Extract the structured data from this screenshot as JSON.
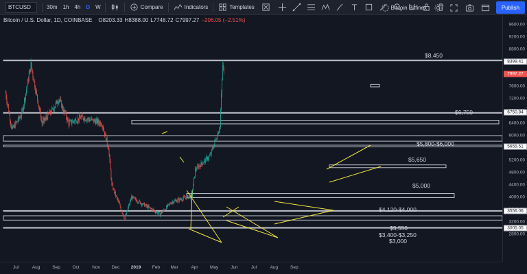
{
  "toolbar": {
    "symbol": "BTCUSD",
    "intervals": [
      "30m",
      "1h",
      "4h",
      "D",
      "W"
    ],
    "active_interval": "D",
    "compare_label": "Compare",
    "indicators_label": "Indicators",
    "templates_label": "Templates",
    "data_source": "Bitcoin Bitfinex",
    "publish_label": "Publish"
  },
  "legend": {
    "title": "Bitcoin / U.S. Dollar",
    "interval": "1D",
    "exchange": "COINBASE",
    "open": "O8203.33",
    "high": "H8388.00",
    "low": "L7748.72",
    "close": "C7997.27",
    "change": "−206.05 (−2.51%)"
  },
  "price_axis": {
    "ticks": [
      "9600.00",
      "9200.00",
      "8800.00",
      "8400.00",
      "8000.00",
      "7600.00",
      "7200.00",
      "6800.00",
      "6400.00",
      "6000.00",
      "5600.00",
      "5200.00",
      "4800.00",
      "4400.00",
      "4000.00",
      "3600.00",
      "3200.00",
      "2800.00"
    ],
    "tags": [
      {
        "label": "8399.41",
        "style": "light"
      },
      {
        "label": "7997.27",
        "style": "red"
      },
      {
        "label": "6750.84",
        "style": "light"
      },
      {
        "label": "5655.51",
        "style": "light"
      },
      {
        "label": "3556.06",
        "style": "light"
      },
      {
        "label": "3005.05",
        "style": "light"
      }
    ]
  },
  "time_axis": {
    "ticks": [
      {
        "label": "Jul",
        "bold": false
      },
      {
        "label": "Aug",
        "bold": false
      },
      {
        "label": "Sep",
        "bold": false
      },
      {
        "label": "Oct",
        "bold": false
      },
      {
        "label": "Nov",
        "bold": false
      },
      {
        "label": "Dec",
        "bold": false
      },
      {
        "label": "2019",
        "bold": true
      },
      {
        "label": "Feb",
        "bold": false
      },
      {
        "label": "Mar",
        "bold": false
      },
      {
        "label": "Apr",
        "bold": false
      },
      {
        "label": "May",
        "bold": false
      },
      {
        "label": "Jun",
        "bold": false
      },
      {
        "label": "Jul",
        "bold": false
      },
      {
        "label": "Aug",
        "bold": false
      },
      {
        "label": "Sep",
        "bold": false
      }
    ]
  },
  "annotations": [
    {
      "label": "$8,450"
    },
    {
      "label": "$6,750"
    },
    {
      "label": "$5,800-$6,000"
    },
    {
      "label": "$5,650"
    },
    {
      "label": "$5,000"
    },
    {
      "label": "$4,120-$4,000"
    },
    {
      "label": "$3,550"
    },
    {
      "label": "$3,400-$3,250"
    },
    {
      "label": "$3,000"
    }
  ],
  "colors": {
    "background": "#131722",
    "up": "#26a69a",
    "down": "#ef5350",
    "drawing": "#f5e642",
    "level_line": "#d1d4dc",
    "accent": "#2962ff"
  },
  "icons": [
    "search-icon",
    "plus-circle-icon",
    "indicators-icon",
    "templates-icon",
    "alert-icon",
    "replay-icon",
    "undo-icon",
    "redo-icon",
    "line-tool-icon",
    "cursor-icon",
    "fullscreen-icon",
    "snapshot-icon",
    "settings-icon"
  ],
  "chart_data": {
    "type": "candlestick",
    "symbol": "BTCUSD",
    "y_range": [
      2800,
      9600
    ],
    "x_range": [
      "2018-06-15",
      "2019-09-30"
    ],
    "path_points": [
      {
        "date": "2018-06-15",
        "price": 7400
      },
      {
        "date": "2018-06-25",
        "price": 6200
      },
      {
        "date": "2018-07-10",
        "price": 6700
      },
      {
        "date": "2018-07-24",
        "price": 8300
      },
      {
        "date": "2018-08-10",
        "price": 6400
      },
      {
        "date": "2018-08-25",
        "price": 6800
      },
      {
        "date": "2018-09-05",
        "price": 7200
      },
      {
        "date": "2018-09-20",
        "price": 6400
      },
      {
        "date": "2018-10-10",
        "price": 6600
      },
      {
        "date": "2018-11-10",
        "price": 6400
      },
      {
        "date": "2018-11-20",
        "price": 5600
      },
      {
        "date": "2018-11-25",
        "price": 4400
      },
      {
        "date": "2018-12-15",
        "price": 3300
      },
      {
        "date": "2018-12-25",
        "price": 4000
      },
      {
        "date": "2019-01-10",
        "price": 3800
      },
      {
        "date": "2019-02-07",
        "price": 3450
      },
      {
        "date": "2019-02-25",
        "price": 3850
      },
      {
        "date": "2019-03-28",
        "price": 4050
      },
      {
        "date": "2019-04-02",
        "price": 4900
      },
      {
        "date": "2019-04-25",
        "price": 5350
      },
      {
        "date": "2019-05-10",
        "price": 6300
      },
      {
        "date": "2019-05-14",
        "price": 8300
      },
      {
        "date": "2019-05-16",
        "price": 7997.27
      }
    ],
    "levels": [
      8450,
      6750,
      6000,
      5800,
      5650,
      5000,
      4120,
      4000,
      3550,
      3400,
      3250,
      3000
    ]
  }
}
